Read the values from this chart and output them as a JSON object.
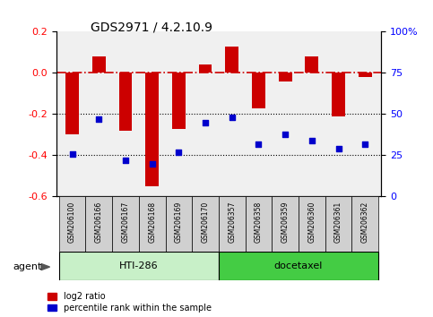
{
  "title": "GDS2971 / 4.2.10.9",
  "samples": [
    "GSM206100",
    "GSM206166",
    "GSM206167",
    "GSM206168",
    "GSM206169",
    "GSM206170",
    "GSM206357",
    "GSM206358",
    "GSM206359",
    "GSM206360",
    "GSM206361",
    "GSM206362"
  ],
  "log2_ratio": [
    -0.3,
    0.08,
    -0.28,
    -0.55,
    -0.27,
    0.04,
    0.13,
    -0.17,
    -0.04,
    0.08,
    -0.21,
    -0.02
  ],
  "percentile_rank": [
    26,
    47,
    22,
    20,
    27,
    45,
    48,
    32,
    38,
    34,
    29,
    32
  ],
  "groups": [
    {
      "label": "HTI-286",
      "start": 0,
      "end": 5,
      "color": "#c8f0c8"
    },
    {
      "label": "docetaxel",
      "start": 6,
      "end": 11,
      "color": "#44cc44"
    }
  ],
  "bar_color": "#CC0000",
  "dot_color": "#0000CC",
  "ylim_left": [
    -0.6,
    0.2
  ],
  "ylim_right": [
    0,
    100
  ],
  "yticks_left": [
    -0.6,
    -0.4,
    -0.2,
    0.0,
    0.2
  ],
  "yticks_right": [
    0,
    25,
    50,
    75,
    100
  ],
  "ytick_right_labels": [
    "0",
    "25",
    "50",
    "75",
    "100%"
  ],
  "hline_color": "#CC0000",
  "background_color": "#ffffff",
  "plot_bg": "#f0f0f0",
  "agent_label": "agent",
  "legend_log2": "log2 ratio",
  "legend_pct": "percentile rank within the sample",
  "bar_width": 0.5
}
